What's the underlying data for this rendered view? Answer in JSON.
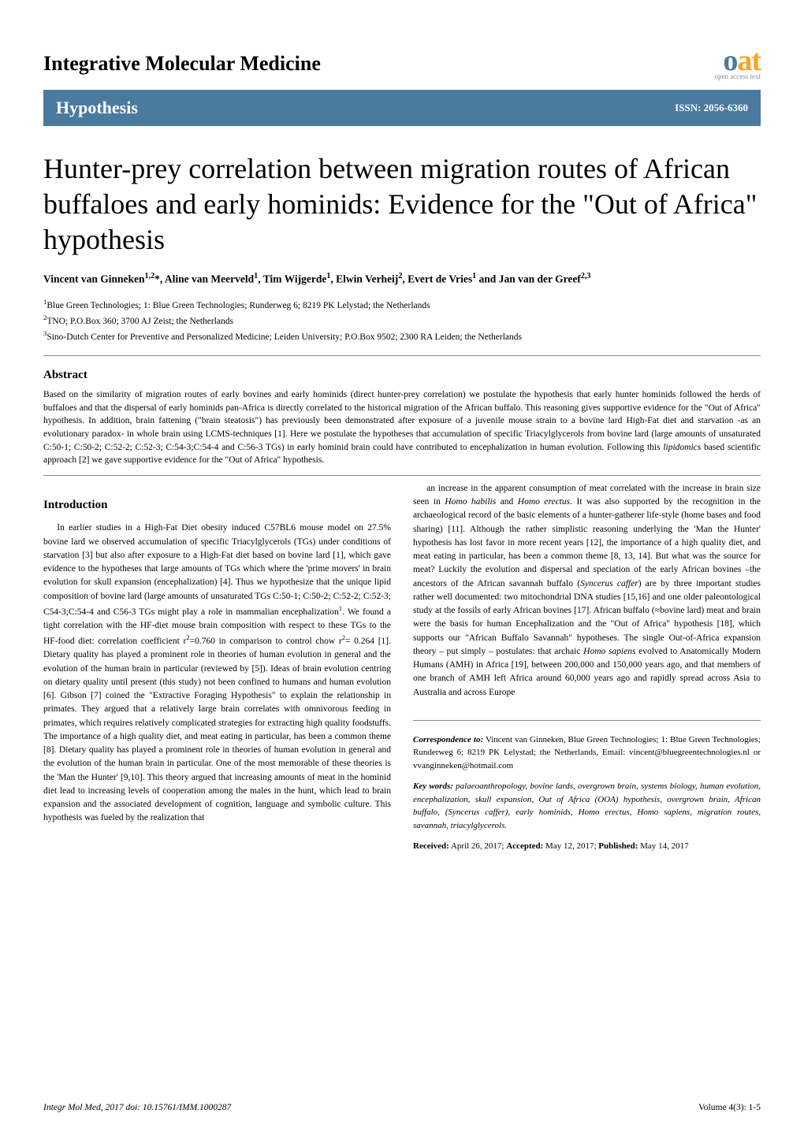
{
  "journal_name": "Integrative Molecular Medicine",
  "logo": {
    "text_o": "o",
    "text_at": "at",
    "color_o": "#4a7a9e",
    "color_at": "#f5a623",
    "subtitle": "open access text"
  },
  "band": {
    "label": "Hypothesis",
    "issn": "ISSN: 2056-6360",
    "bg_color": "#4a7a9e"
  },
  "title": "Hunter-prey correlation between migration routes of African buffaloes and early hominids: Evidence for the \"Out of Africa\" hypothesis",
  "authors_html": "Vincent van Ginneken<sup>1,2</sup>*, Aline van Meerveld<sup>1</sup>, Tim Wijgerde<sup>1</sup>, Elwin Verheij<sup>2</sup>, Evert de Vries<sup>1</sup> and Jan van der Greef<sup>2,3</sup>",
  "affiliations": [
    "<sup>1</sup>Blue Green Technologies; 1: Blue Green Technologies; Runderweg 6; 8219 PK Lelystad; the Netherlands",
    "<sup>2</sup>TNO; P.O.Box 360; 3700 AJ Zeist; the Netherlands",
    "<sup>3</sup>Sino-Dutch Center for Preventive and Personalized Medicine; Leiden University; P.O.Box 9502; 2300 RA Leiden; the Netherlands"
  ],
  "abstract": {
    "heading": "Abstract",
    "text": "Based on the similarity of migration routes of early bovines and early hominids (direct hunter-prey correlation) we postulate the hypothesis that early hunter hominids followed the herds of buffaloes and that the dispersal of early hominids pan-Africa is directly correlated to the historical migration of the African buffalo. This reasoning gives supportive evidence for the \"Out of Africa\" hypothesis. In addition, brain fattening (\"brain steatosis\") has previously been demonstrated after exposure of a juvenile mouse strain to a bovine lard High-Fat diet and starvation -as an evolutionary paradox- in whole brain using LCMS-techniques [1]. Here we postulate the hypotheses that accumulation of specific Triacylglycerols from bovine lard (large amounts of unsaturated C:50-1; C:50-2; C:52-2; C:52-3; C:54-3;C:54-4 and C:56-3 TGs) in early hominid brain could have contributed to encephalization in human evolution. Following this <em>lipidomics</em> based scientific approach [2] we gave supportive evidence for the \"Out of Africa\" hypothesis."
  },
  "intro": {
    "heading": "Introduction",
    "col1": "In earlier studies in a High-Fat Diet obesity induced C57BL6 mouse model on 27.5% bovine lard we observed accumulation of specific Triacylglycerols (TGs) under conditions of starvation [3] but also after exposure to a High-Fat diet based on bovine lard [1], which gave evidence to the hypotheses that large amounts of TGs which where the 'prime movers' in brain evolution for skull expansion (encephalization) [4]. Thus we hypothesize that the unique lipid composition of bovine lard (large amounts of unsaturated TGs C:50-1; C:50-2; C:52-2; C:52-3; C54-3;C:54-4 and C56-3 TGs might play a role in mammalian encephalization<sup>1</sup>. We found a tight correlation with the HF-diet mouse brain composition with respect to these TGs to the HF-food diet: correlation coefficient r<sup>2</sup>=0.760 in comparison to control chow r<sup>2</sup>= 0.264 [1]. Dietary quality has played a prominent role in theories of human evolution in general and the evolution of the human brain in particular (reviewed by [5]). Ideas of brain evolution centring on dietary quality until present (this study) not been confined to humans and human evolution [6]. Gibson [7] coined the \"Extractive Foraging Hypothesis\" to explain the relationship in primates. They argued that a relatively large brain correlates with omnivorous feeding in primates, which requires relatively complicated strategies for extracting high quality foodstuffs. The importance of a high quality diet, and meat eating in particular, has been a common theme [8]. Dietary quality has played a prominent role in theories of human evolution in general and the evolution of the human brain in particular. One of the most memorable of these theories is the 'Man the Hunter' [9,10]. This theory argued that increasing amounts of meat in the hominid diet lead to increasing levels of cooperation among the males in the hunt, which lead to brain expansion and the associated development of cognition, language and symbolic culture. This hypothesis was fueled by the realization that",
    "col2": "an increase in the apparent consumption of meat correlated with the increase in brain size seen in <em>Homo habilis</em> and <em>Homo erectus</em>. It was also supported by the recognition in the archaeological record of the basic elements of a hunter-gatherer life-style (home bases and food sharing) [11]. Although the rather simplistic reasoning underlying the 'Man the Hunter' hypothesis has lost favor in more recent years [12], the importance of a high quality diet, and meat eating in particular, has been a common theme [8, 13, 14]. But what was the source for meat? Luckily the evolution and dispersal and speciation of the early African bovines –the ancestors of the African savannah buffalo (<em>Syncerus caffer</em>) are by three important studies rather well documented: two mitochondrial DNA studies [15,16] and one older paleontological study at the fossils of early African bovines [17]. African buffalo (≈bovine lard) meat and brain were the basis for human Encephalization and the \"Out of Africa\" hypothesis [18], which supports our \"African Buffalo Savannah\" hypotheses. The single Out-of-Africa expansion theory – put simply – postulates: that archaic <em>Homo sapiens</em> evolved to Anatomically Modern Humans (AMH) in Africa [19], between 200,000 and 150,000 years ago, and that members of one branch of AMH left Africa around 60,000 years ago and rapidly spread across Asia to Australia and across Europe"
  },
  "correspondence": {
    "text": "<strong><em>Correspondence to:</em></strong> Vincent van Ginneken, Blue Green Technologies; 1: Blue Green Technologies; Runderweg 6; 8219 PK Lelystad; the Netherlands, Email: vincent@bluegreentechnologies.nl or vvanginneken@hotmail.com",
    "keywords": "<strong><em>Key words:</em></strong> <em>palaeoanthropology, bovine lards, overgrown brain, systems biology, human evolution, encephalization, skull expansion, Out of Africa (OOA) hypothesis, overgrown brain, African buffalo, (Syncerus caffer), early hominids, Homo erectus, Homo sapiens, migration routes, savannah, triacylglycerols.</em>",
    "dates": "<strong>Received:</strong> April 26, 2017; <strong>Accepted:</strong> May 12, 2017; <strong>Published:</strong> May 14, 2017"
  },
  "footer": {
    "left": "Integr Mol Med, 2017  doi: 10.15761/IMM.1000287",
    "right": "Volume 4(3): 1-5"
  }
}
